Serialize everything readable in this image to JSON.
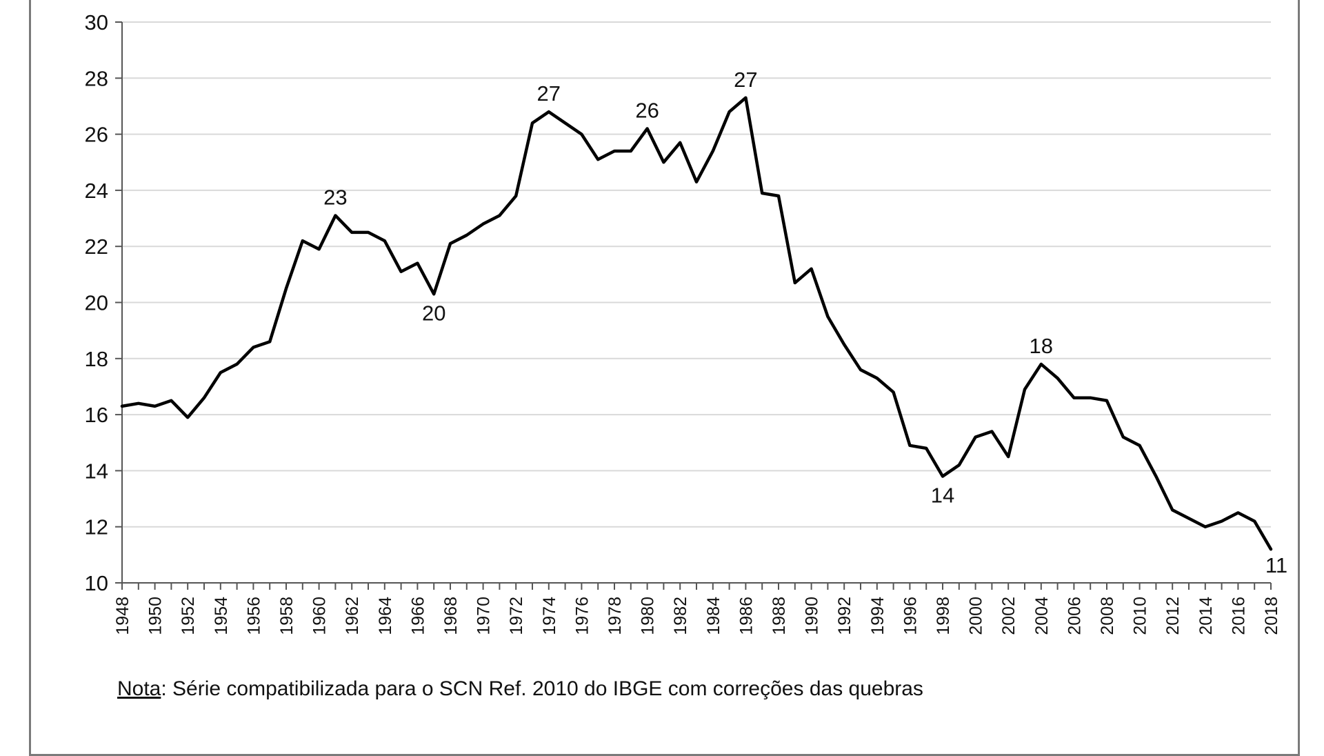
{
  "chart_data": {
    "type": "line",
    "title": "",
    "xlabel": "",
    "ylabel": "",
    "ylim": [
      10,
      30
    ],
    "yticks": [
      10,
      12,
      14,
      16,
      18,
      20,
      22,
      24,
      26,
      28,
      30
    ],
    "grid": true,
    "series": [
      {
        "name": "",
        "color": "#000000",
        "x": [
          1948,
          1949,
          1950,
          1951,
          1952,
          1953,
          1954,
          1955,
          1956,
          1957,
          1958,
          1959,
          1960,
          1961,
          1962,
          1963,
          1964,
          1965,
          1966,
          1967,
          1968,
          1969,
          1970,
          1971,
          1972,
          1973,
          1974,
          1975,
          1976,
          1977,
          1978,
          1979,
          1980,
          1981,
          1982,
          1983,
          1984,
          1985,
          1986,
          1987,
          1988,
          1989,
          1990,
          1991,
          1992,
          1993,
          1994,
          1995,
          1996,
          1997,
          1998,
          1999,
          2000,
          2001,
          2002,
          2003,
          2004,
          2005,
          2006,
          2007,
          2008,
          2009,
          2010,
          2011,
          2012,
          2013,
          2014,
          2015,
          2016,
          2017,
          2018
        ],
        "values": [
          16.3,
          16.4,
          16.3,
          16.5,
          15.9,
          16.6,
          17.5,
          17.8,
          18.4,
          18.6,
          20.5,
          22.2,
          21.9,
          23.1,
          22.5,
          22.5,
          22.2,
          21.1,
          21.4,
          20.3,
          22.1,
          22.4,
          22.8,
          23.1,
          23.8,
          26.4,
          26.8,
          26.4,
          26.0,
          25.1,
          25.4,
          25.4,
          26.2,
          25.0,
          25.7,
          24.3,
          25.4,
          26.8,
          27.3,
          23.9,
          23.8,
          20.7,
          21.2,
          19.5,
          18.5,
          17.6,
          17.3,
          16.8,
          14.9,
          14.8,
          13.8,
          14.2,
          15.2,
          15.4,
          14.5,
          16.9,
          17.8,
          17.3,
          16.6,
          16.6,
          16.5,
          15.2,
          14.9,
          13.8,
          12.6,
          12.3,
          12.0,
          12.2,
          12.5,
          12.2,
          11.2
        ]
      }
    ],
    "annotations": [
      {
        "x": 1961,
        "label": "23",
        "position": "above"
      },
      {
        "x": 1967,
        "label": "20",
        "position": "below"
      },
      {
        "x": 1974,
        "label": "27",
        "position": "above"
      },
      {
        "x": 1980,
        "label": "26",
        "position": "above"
      },
      {
        "x": 1986,
        "label": "27",
        "position": "above"
      },
      {
        "x": 1998,
        "label": "14",
        "position": "below"
      },
      {
        "x": 2004,
        "label": "18",
        "position": "above"
      },
      {
        "x": 2018,
        "label": "11",
        "position": "below"
      }
    ],
    "x_tick_labels": [
      "1948",
      "1950",
      "1952",
      "1954",
      "1956",
      "1958",
      "1960",
      "1962",
      "1964",
      "1966",
      "1968",
      "1970",
      "1972",
      "1974",
      "1976",
      "1978",
      "1980",
      "1982",
      "1984",
      "1986",
      "1988",
      "1990",
      "1992",
      "1994",
      "1996",
      "1998",
      "2000",
      "2002",
      "2004",
      "2006",
      "2008",
      "2010",
      "2012",
      "2014",
      "2016",
      "2018"
    ]
  },
  "note": {
    "label": "Nota",
    "text": ": Série compatibilizada para o SCN Ref. 2010 do IBGE com correções das quebras"
  }
}
